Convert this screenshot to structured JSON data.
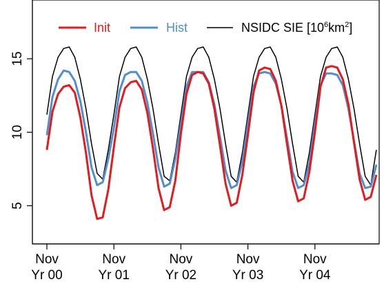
{
  "chart_data": {
    "type": "line",
    "title": "",
    "xlabel": "",
    "ylabel": "",
    "ylim": [
      2.4,
      19
    ],
    "x_start_index": 0,
    "x_tick_labels": [
      {
        "index": 0,
        "line1": "Nov",
        "line2": "Yr 00"
      },
      {
        "index": 12,
        "line1": "Nov",
        "line2": "Yr 01"
      },
      {
        "index": 24,
        "line1": "Nov",
        "line2": "Yr 02"
      },
      {
        "index": 36,
        "line1": "Nov",
        "line2": "Yr 03"
      },
      {
        "index": 48,
        "line1": "Nov",
        "line2": "Yr 04"
      }
    ],
    "y_ticks": [
      5,
      10,
      15
    ],
    "grid": false,
    "legend": {
      "placement": "top",
      "unit_prefix": "NSIDC SIE [10",
      "unit_exp1": "6",
      "unit_mid": "km",
      "unit_exp2": "2",
      "unit_suffix": "]"
    },
    "series": [
      {
        "name": "Init",
        "color": "#e41a1c",
        "values": [
          8.8,
          11.4,
          12.6,
          13.1,
          13.2,
          12.7,
          11.0,
          8.6,
          5.7,
          4.1,
          4.2,
          6.1,
          9.0,
          11.7,
          13.0,
          13.4,
          13.5,
          12.9,
          11.3,
          8.9,
          6.2,
          4.7,
          4.9,
          6.7,
          9.9,
          12.6,
          13.9,
          14.1,
          14.0,
          13.3,
          11.6,
          9.1,
          6.5,
          5.0,
          5.2,
          7.1,
          9.8,
          12.7,
          14.2,
          14.4,
          14.3,
          13.5,
          11.8,
          9.2,
          6.7,
          5.3,
          5.5,
          7.3,
          10.0,
          13.1,
          14.4,
          14.5,
          14.4,
          13.6,
          11.9,
          9.3,
          6.8,
          5.4,
          5.6,
          7.1
        ]
      },
      {
        "name": "Hist",
        "color": "#4f8fcd",
        "values": [
          9.8,
          12.4,
          13.6,
          14.2,
          14.1,
          13.5,
          12.1,
          10.0,
          7.6,
          6.4,
          6.6,
          8.2,
          10.3,
          12.8,
          13.9,
          14.1,
          14.1,
          13.5,
          12.0,
          9.9,
          7.6,
          6.3,
          6.5,
          8.2,
          10.6,
          13.1,
          14.1,
          14.1,
          14.1,
          13.4,
          11.9,
          9.7,
          7.4,
          6.2,
          6.4,
          8.0,
          10.6,
          13.1,
          14.0,
          14.1,
          14.0,
          13.3,
          11.8,
          9.6,
          7.3,
          6.2,
          6.4,
          7.9,
          10.6,
          13.2,
          14.0,
          14.0,
          13.9,
          13.2,
          11.6,
          9.4,
          7.2,
          6.2,
          6.3,
          7.8
        ]
      },
      {
        "name": "NSIDC SIE",
        "color": "#000000",
        "values": [
          11.2,
          13.8,
          15.1,
          15.7,
          15.8,
          15.1,
          13.6,
          11.6,
          9.2,
          7.2,
          6.8,
          8.8,
          11.2,
          13.8,
          15.1,
          15.7,
          15.8,
          15.1,
          13.6,
          11.6,
          9.2,
          7.0,
          6.7,
          8.6,
          11.2,
          13.8,
          15.1,
          15.7,
          15.8,
          15.1,
          13.6,
          11.6,
          9.2,
          7.0,
          6.6,
          8.6,
          11.2,
          13.8,
          15.1,
          15.7,
          15.8,
          15.1,
          13.6,
          11.6,
          9.2,
          7.0,
          6.6,
          8.6,
          11.2,
          13.8,
          15.1,
          15.7,
          15.8,
          15.1,
          13.6,
          11.6,
          9.2,
          7.0,
          6.4,
          8.8
        ]
      }
    ]
  }
}
